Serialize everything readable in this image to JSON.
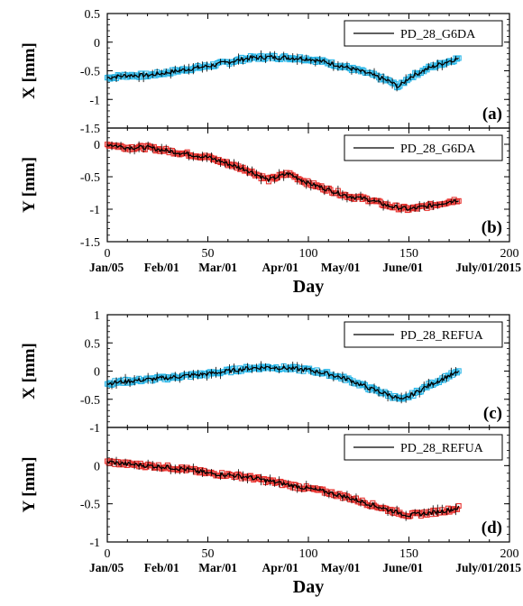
{
  "chart_data": [
    {
      "id": "a",
      "type": "line",
      "ylabel": "X [mm]",
      "legend": "PD_28_G6DA",
      "legend_position": "top-right",
      "panel_label": "(a)",
      "marker_color": "#29b6e8",
      "line_color": "#000000",
      "xlim": [
        0,
        200
      ],
      "ylim": [
        -1.5,
        0.5
      ],
      "yticks": [
        "0.5",
        "0",
        "-0.5",
        "-1",
        "-1.5"
      ],
      "error_bar": true,
      "x": [
        0,
        10,
        20,
        30,
        40,
        50,
        60,
        70,
        80,
        90,
        100,
        110,
        120,
        130,
        140,
        145,
        150,
        160,
        170,
        175
      ],
      "y": [
        -0.62,
        -0.58,
        -0.58,
        -0.53,
        -0.47,
        -0.42,
        -0.35,
        -0.28,
        -0.26,
        -0.27,
        -0.29,
        -0.36,
        -0.45,
        -0.55,
        -0.68,
        -0.78,
        -0.62,
        -0.45,
        -0.33,
        -0.28
      ]
    },
    {
      "id": "b",
      "type": "line",
      "ylabel": "Y [mm]",
      "legend": "PD_28_G6DA",
      "legend_position": "top-right",
      "panel_label": "(b)",
      "marker_color": "#e8322e",
      "line_color": "#000000",
      "xlim": [
        0,
        200
      ],
      "ylim": [
        -1.5,
        0.25
      ],
      "yticks": [
        "0",
        "-0.5",
        "-1",
        "-1.5"
      ],
      "xticks": [
        "0",
        "50",
        "100",
        "150",
        "200"
      ],
      "date_labels": [
        "Jan/05",
        "Feb/01",
        "Mar/01",
        "Apr/01",
        "May/01",
        "June/01",
        "July/01/2015"
      ],
      "xlabel": "Day",
      "error_bar": true,
      "x": [
        0,
        10,
        20,
        30,
        40,
        50,
        60,
        70,
        80,
        90,
        100,
        110,
        120,
        130,
        140,
        150,
        160,
        170,
        175
      ],
      "y": [
        0.0,
        -0.05,
        -0.05,
        -0.1,
        -0.15,
        -0.2,
        -0.3,
        -0.4,
        -0.55,
        -0.45,
        -0.6,
        -0.7,
        -0.8,
        -0.85,
        -0.95,
        -1.0,
        -0.95,
        -0.88,
        -0.85
      ]
    },
    {
      "id": "c",
      "type": "line",
      "ylabel": "X [mm]",
      "legend": "PD_28_REFUA",
      "legend_position": "top-right",
      "panel_label": "(c)",
      "marker_color": "#29b6e8",
      "line_color": "#000000",
      "xlim": [
        0,
        200
      ],
      "ylim": [
        -1,
        1
      ],
      "yticks": [
        "1",
        "0.5",
        "0",
        "-0.5",
        "-1"
      ],
      "error_bar": true,
      "x": [
        0,
        10,
        20,
        30,
        40,
        50,
        60,
        70,
        80,
        90,
        100,
        110,
        120,
        130,
        140,
        147,
        150,
        160,
        170,
        175
      ],
      "y": [
        -0.22,
        -0.18,
        -0.15,
        -0.12,
        -0.08,
        -0.05,
        0.0,
        0.05,
        0.07,
        0.05,
        0.02,
        -0.05,
        -0.15,
        -0.3,
        -0.42,
        -0.52,
        -0.45,
        -0.25,
        -0.08,
        -0.02
      ]
    },
    {
      "id": "d",
      "type": "line",
      "ylabel": "Y [mm]",
      "legend": "PD_28_REFUA",
      "legend_position": "top-right",
      "panel_label": "(d)",
      "marker_color": "#e8322e",
      "line_color": "#000000",
      "xlim": [
        0,
        200
      ],
      "ylim": [
        -1,
        0.5
      ],
      "yticks": [
        "0",
        "-0.5",
        "-1"
      ],
      "xticks": [
        "0",
        "50",
        "100",
        "150",
        "200"
      ],
      "date_labels": [
        "Jan/05",
        "Feb/01",
        "Mar/01",
        "Apr/01",
        "May/01",
        "June/01",
        "July/01/2015"
      ],
      "xlabel": "Day",
      "error_bar": true,
      "x": [
        0,
        10,
        20,
        30,
        40,
        50,
        60,
        70,
        80,
        90,
        100,
        110,
        120,
        130,
        140,
        150,
        160,
        170,
        175
      ],
      "y": [
        0.05,
        0.02,
        0.0,
        -0.02,
        -0.05,
        -0.1,
        -0.12,
        -0.15,
        -0.2,
        -0.25,
        -0.3,
        -0.35,
        -0.42,
        -0.5,
        -0.58,
        -0.65,
        -0.62,
        -0.58,
        -0.55
      ]
    }
  ]
}
